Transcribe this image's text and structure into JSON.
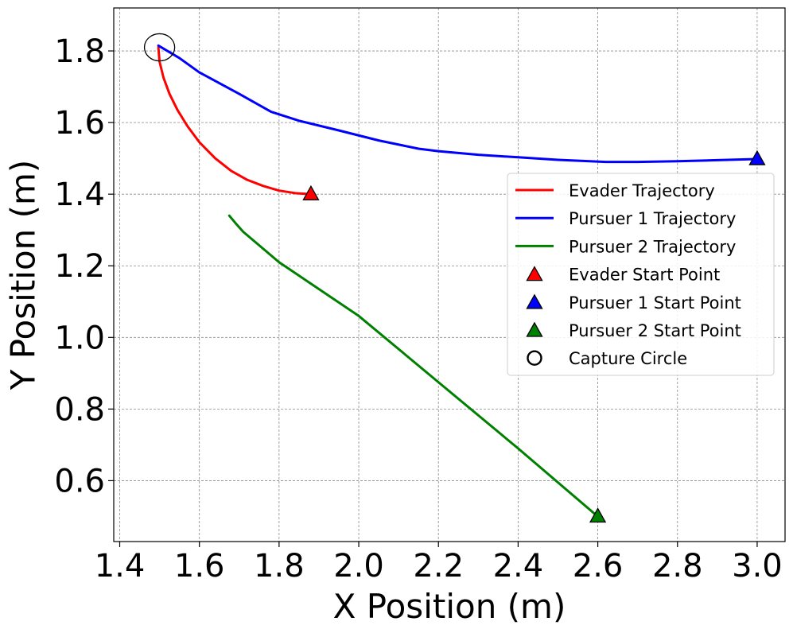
{
  "chart_data": {
    "type": "line",
    "title": "",
    "xlabel": "X Position (m)",
    "ylabel": "Y Position (m)",
    "xlim": [
      1.385,
      3.07
    ],
    "ylim": [
      0.43,
      1.92
    ],
    "xticks": [
      1.4,
      1.6,
      1.8,
      2.0,
      2.2,
      2.4,
      2.6,
      2.8,
      3.0
    ],
    "yticks": [
      0.6,
      0.8,
      1.0,
      1.2,
      1.4,
      1.6,
      1.8
    ],
    "xtick_labels": [
      "1.4",
      "1.6",
      "1.8",
      "2.0",
      "2.2",
      "2.4",
      "2.6",
      "2.8",
      "3.0"
    ],
    "ytick_labels": [
      "0.6",
      "0.8",
      "1.0",
      "1.2",
      "1.4",
      "1.6",
      "1.8"
    ],
    "grid": true,
    "legend_position": "center-right",
    "series": [
      {
        "name": "Evader Trajectory",
        "kind": "line",
        "color": "#ff0000",
        "x": [
          1.88,
          1.84,
          1.8,
          1.76,
          1.72,
          1.68,
          1.64,
          1.6,
          1.57,
          1.545,
          1.525,
          1.51,
          1.5,
          1.497
        ],
        "y": [
          1.4,
          1.403,
          1.41,
          1.423,
          1.44,
          1.465,
          1.5,
          1.545,
          1.59,
          1.635,
          1.68,
          1.725,
          1.77,
          1.81
        ]
      },
      {
        "name": "Pursuer 1 Trajectory",
        "kind": "line",
        "color": "#0000ff",
        "x": [
          3.0,
          2.9,
          2.8,
          2.7,
          2.62,
          2.5,
          2.4,
          2.3,
          2.2,
          2.15,
          2.05,
          1.95,
          1.85,
          1.78,
          1.7,
          1.6,
          1.55,
          1.497
        ],
        "y": [
          1.498,
          1.495,
          1.492,
          1.49,
          1.49,
          1.496,
          1.503,
          1.51,
          1.52,
          1.527,
          1.55,
          1.578,
          1.605,
          1.63,
          1.68,
          1.74,
          1.78,
          1.815
        ]
      },
      {
        "name": "Pursuer 2 Trajectory",
        "kind": "line",
        "color": "#008000",
        "x": [
          2.6,
          2.4,
          2.2,
          2.0,
          1.8,
          1.71,
          1.69,
          1.675
        ],
        "y": [
          0.5,
          0.69,
          0.875,
          1.06,
          1.21,
          1.295,
          1.32,
          1.34
        ]
      },
      {
        "name": "Evader Start Point",
        "kind": "marker",
        "marker": "triangle",
        "color": "#ff0000",
        "x": [
          1.88
        ],
        "y": [
          1.4
        ]
      },
      {
        "name": "Pursuer 1 Start Point",
        "kind": "marker",
        "marker": "triangle",
        "color": "#0000ff",
        "x": [
          3.0
        ],
        "y": [
          1.498
        ]
      },
      {
        "name": "Pursuer 2 Start Point",
        "kind": "marker",
        "marker": "triangle",
        "color": "#008000",
        "x": [
          2.6
        ],
        "y": [
          0.5
        ]
      },
      {
        "name": "Capture Circle",
        "kind": "circle",
        "color": "#000000",
        "center": [
          1.5,
          1.81
        ],
        "radius": 0.038
      }
    ],
    "legend": [
      {
        "label": "Evader Trajectory",
        "kind": "line",
        "color": "#ff0000"
      },
      {
        "label": "Pursuer 1 Trajectory",
        "kind": "line",
        "color": "#0000ff"
      },
      {
        "label": "Pursuer 2 Trajectory",
        "kind": "line",
        "color": "#008000"
      },
      {
        "label": "Evader Start Point",
        "kind": "triangle",
        "color": "#ff0000"
      },
      {
        "label": "Pursuer 1 Start Point",
        "kind": "triangle",
        "color": "#0000ff"
      },
      {
        "label": "Pursuer 2 Start Point",
        "kind": "triangle",
        "color": "#008000"
      },
      {
        "label": "Capture Circle",
        "kind": "circle",
        "color": "#000000"
      }
    ]
  }
}
